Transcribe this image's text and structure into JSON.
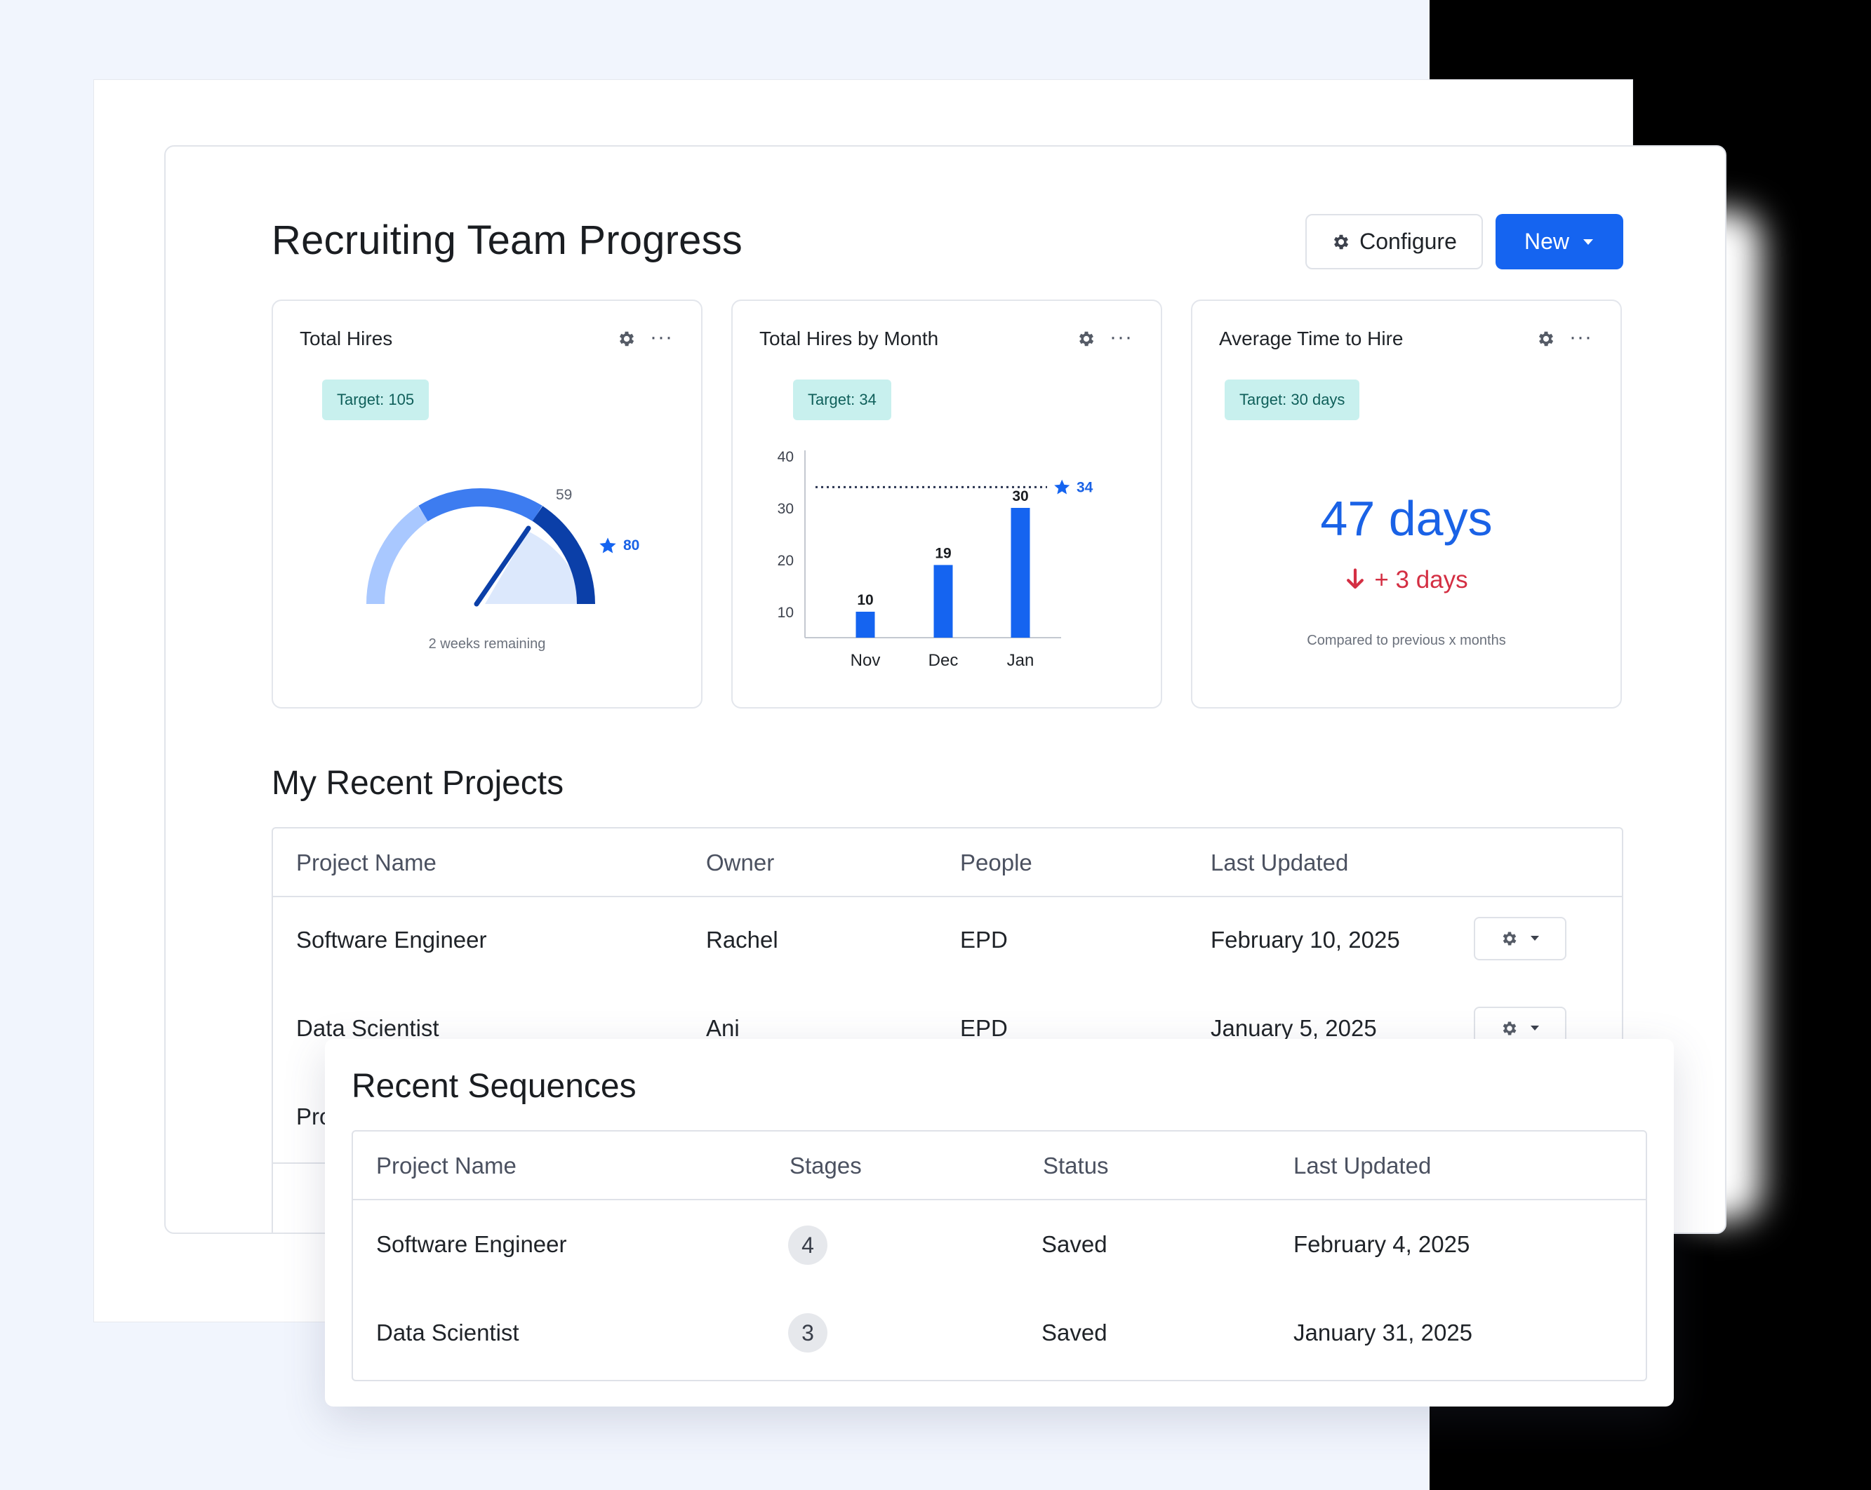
{
  "page_title": "Recruiting Team Progress",
  "toolbar": {
    "configure_label": "Configure",
    "new_label": "New"
  },
  "cards": {
    "total_hires": {
      "title": "Total Hires",
      "target": "Target: 105",
      "current_value": "59",
      "star_value": "80",
      "remaining": "2 weeks remaining"
    },
    "by_month": {
      "title": "Total Hires by Month",
      "target": "Target: 34",
      "target_value": "34"
    },
    "avg_time": {
      "title": "Average Time to Hire",
      "target": "Target: 30 days",
      "value": "47 days",
      "delta": "+ 3 days",
      "note": "Compared to previous x months"
    }
  },
  "chart_data": {
    "type": "bar",
    "categories": [
      "Nov",
      "Dec",
      "Jan"
    ],
    "values": [
      10,
      19,
      30
    ],
    "y_ticks": [
      10,
      20,
      30,
      40
    ],
    "ylim": [
      5,
      40
    ],
    "target_line": 34,
    "title": "Total Hires by Month",
    "xlabel": "",
    "ylabel": "",
    "grid": false,
    "bar_color": "#1564f0"
  },
  "projects": {
    "title": "My Recent Projects",
    "columns": [
      "Project Name",
      "Owner",
      "People",
      "Last Updated"
    ],
    "rows": [
      {
        "name": "Software Engineer",
        "owner": "Rachel",
        "people": "EPD",
        "updated": "February 10, 2025"
      },
      {
        "name": "Data Scientist",
        "owner": "Ani",
        "people": "EPD",
        "updated": "January 5, 2025"
      },
      {
        "name": "Pro",
        "owner": "",
        "people": "",
        "updated": ""
      }
    ]
  },
  "sequences": {
    "title": "Recent Sequences",
    "columns": [
      "Project Name",
      "Stages",
      "Status",
      "Last Updated"
    ],
    "rows": [
      {
        "name": "Software Engineer",
        "stages": "4",
        "status": "Saved",
        "updated": "February 4, 2025"
      },
      {
        "name": "Data Scientist",
        "stages": "3",
        "status": "Saved",
        "updated": "January 31, 2025"
      }
    ]
  },
  "colors": {
    "primary": "#1564f0",
    "badge_bg": "#c8f0ee",
    "negative": "#d42f43",
    "gauge_light": "#a9c8ff",
    "gauge_mid": "#3d7cf0",
    "gauge_dark": "#0b3fa8"
  },
  "icons": [
    "gear-icon",
    "chevron-down-icon",
    "more-icon",
    "star-icon",
    "arrow-down-icon"
  ]
}
